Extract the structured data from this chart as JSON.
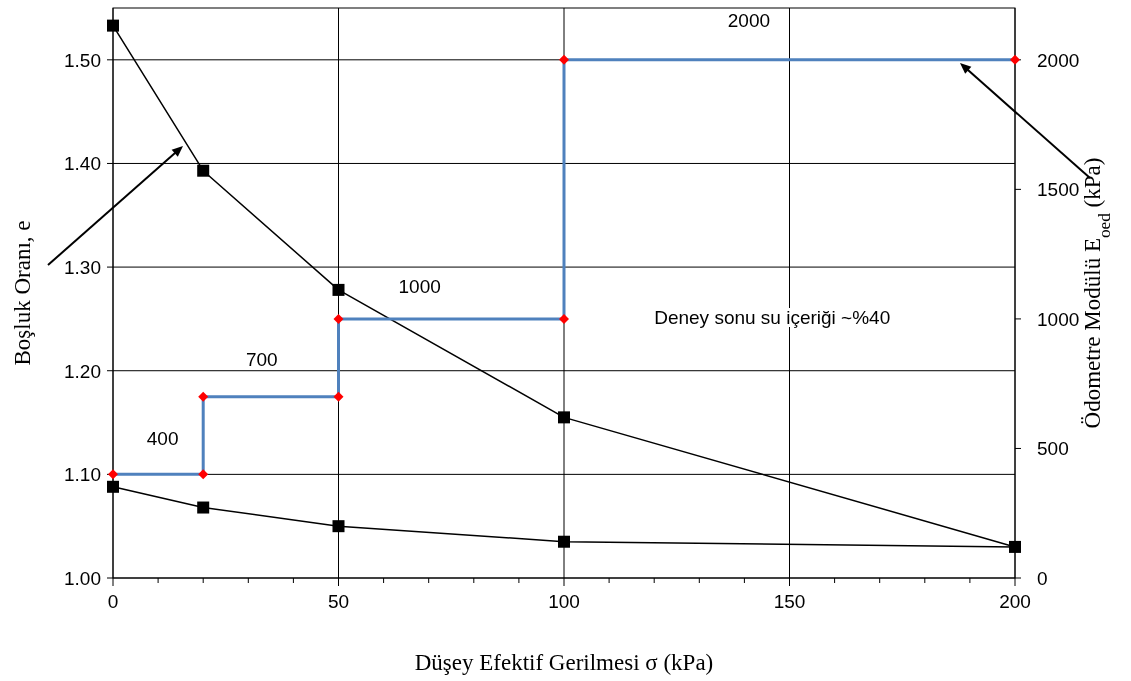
{
  "chart_data": {
    "type": "line",
    "xlabel": "Düşey Efektif Gerilmesi σ (kPa)",
    "ylabel": "Boşluk Oranı, e",
    "y2label": "Ödometre Modülü E$_{oed}$ (kPa)",
    "xlim": [
      0,
      200
    ],
    "xticks": [
      0,
      {
        "value": 10,
        "label": null
      },
      {
        "value": 20,
        "label": null
      },
      {
        "value": 30,
        "label": null
      },
      {
        "value": 40,
        "label": null
      },
      50,
      {
        "value": 60,
        "label": null
      },
      {
        "value": 70,
        "label": null
      },
      {
        "value": 80,
        "label": null
      },
      {
        "value": 90,
        "label": null
      },
      100,
      {
        "value": 110,
        "label": null
      },
      {
        "value": 120,
        "label": null
      },
      {
        "value": 130,
        "label": null
      },
      {
        "value": 140,
        "label": null
      },
      150,
      {
        "value": 160,
        "label": null
      },
      {
        "value": 170,
        "label": null
      },
      {
        "value": 180,
        "label": null
      },
      {
        "value": 190,
        "label": null
      },
      200
    ],
    "ylim": [
      1.0,
      1.55
    ],
    "yticks": [
      {
        "value": 1.0,
        "label": "1.00"
      },
      {
        "value": 1.1,
        "label": "1.10"
      },
      {
        "value": 1.2,
        "label": "1.20"
      },
      {
        "value": 1.3,
        "label": "1.30"
      },
      {
        "value": 1.4,
        "label": "1.40"
      },
      {
        "value": 1.5,
        "label": "1.50"
      }
    ],
    "y2lim": [
      0,
      2200
    ],
    "y2ticks": [
      0,
      500,
      1000,
      1500,
      2000
    ],
    "grid": true,
    "series": [
      {
        "color": "#000000",
        "marker": "square",
        "x": [
          0,
          20,
          50,
          100,
          200,
          100,
          50,
          20,
          0
        ],
        "values": [
          1.533,
          1.393,
          1.278,
          1.155,
          1.03,
          1.035,
          1.05,
          1.068,
          1.088
        ]
      },
      {
        "axis": "y2",
        "color": "#4f81bd",
        "marker": "diamond",
        "colors": [
          "#ff0000",
          "#ff0000",
          "#ff0000",
          "#ff0000",
          "#ff0000",
          "#ff0000",
          "#ff0000",
          "#ff0000"
        ],
        "x": [
          0,
          20,
          20,
          50,
          50,
          100,
          100,
          200
        ],
        "values": [
          400,
          400,
          700,
          700,
          1000,
          1000,
          2000,
          2000
        ]
      }
    ],
    "annotations": [
      "400",
      "700",
      "1000",
      "2000",
      "Deney sonu su içeriği ~%40"
    ]
  }
}
